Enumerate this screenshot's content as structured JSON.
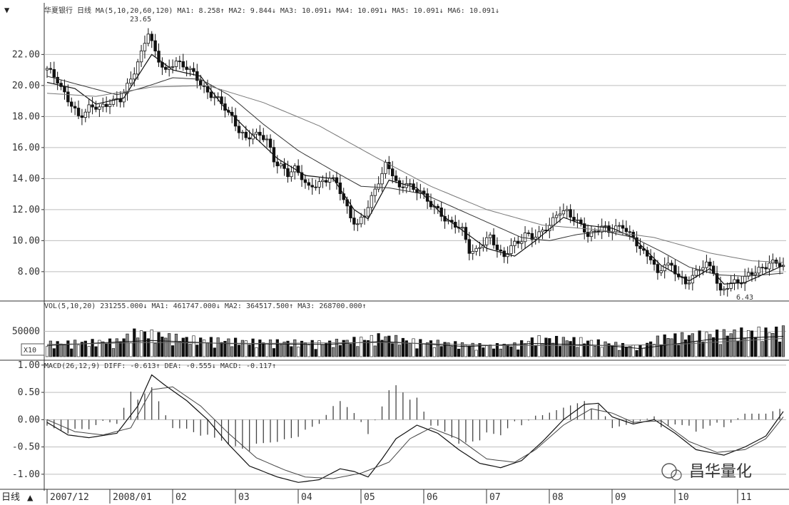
{
  "headers": {
    "price": "华夏银行 日线 MA(5,10,20,60,120)  MA1: 8.258↑  MA2: 9.844↓  MA3: 10.091↓  MA4: 10.091↓  MA5: 10.091↓  MA6: 10.091↓",
    "volume": "VOL(5,10,20)  231255.000↓  MA1: 461747.000↓  MA2: 364517.500↑  MA3: 268700.000↑",
    "macd": "MACD(26,12,9)  DIFF: -0.613↑  DEA: -0.555↓  MACD: -0.117↑"
  },
  "annotations": {
    "high_label": "23.65",
    "low_label": "6.43",
    "volume_unit": "X10",
    "nav_label": "日线"
  },
  "watermark": "昌华量化",
  "colors": {
    "up": "#ffffff",
    "down": "#111111",
    "ma_short": "#111111",
    "ma_long": "#777777",
    "grid": "#bdbdbd"
  },
  "chart_data": [
    {
      "type": "candlestick",
      "title": "华夏银行 日线",
      "y_tick_labels": [
        "22.00",
        "20.00",
        "18.00",
        "16.00",
        "14.00",
        "12.00",
        "10.00",
        "8.00"
      ],
      "ylim": [
        6.2,
        24.5
      ],
      "x_tick_labels": [
        "2007/12",
        "2008/01",
        "02",
        "03",
        "04",
        "05",
        "06",
        "07",
        "08",
        "09",
        "10",
        "11"
      ],
      "high": 23.65,
      "low": 6.43,
      "close_path": [
        [
          0,
          21.0
        ],
        [
          3,
          20.4
        ],
        [
          6,
          19.0
        ],
        [
          9,
          18.0
        ],
        [
          12,
          18.6
        ],
        [
          15,
          18.5
        ],
        [
          18,
          19.0
        ],
        [
          21,
          19.0
        ],
        [
          24,
          20.5
        ],
        [
          27,
          22.0
        ],
        [
          29,
          23.4
        ],
        [
          31,
          22.2
        ],
        [
          34,
          20.8
        ],
        [
          37,
          21.6
        ],
        [
          40,
          21.2
        ],
        [
          43,
          20.4
        ],
        [
          46,
          19.6
        ],
        [
          49,
          19.0
        ],
        [
          51,
          18.6
        ],
        [
          53,
          18.0
        ],
        [
          55,
          17.0
        ],
        [
          57,
          16.5
        ],
        [
          59,
          17.0
        ],
        [
          61,
          16.8
        ],
        [
          63,
          16.4
        ],
        [
          65,
          15.2
        ],
        [
          67,
          14.9
        ],
        [
          69,
          14.2
        ],
        [
          71,
          14.6
        ],
        [
          73,
          14.2
        ],
        [
          75,
          13.4
        ],
        [
          77,
          13.5
        ],
        [
          79,
          13.8
        ],
        [
          81,
          14.2
        ],
        [
          83,
          13.6
        ],
        [
          85,
          12.6
        ],
        [
          87,
          11.6
        ],
        [
          89,
          11.0
        ],
        [
          91,
          11.6
        ],
        [
          93,
          12.8
        ],
        [
          95,
          13.9
        ],
        [
          97,
          14.8
        ],
        [
          99,
          14.3
        ],
        [
          101,
          13.4
        ],
        [
          103,
          13.8
        ],
        [
          105,
          13.1
        ],
        [
          107,
          13.3
        ],
        [
          109,
          12.6
        ],
        [
          111,
          12.1
        ],
        [
          113,
          11.6
        ],
        [
          115,
          11.3
        ],
        [
          117,
          11.0
        ],
        [
          119,
          10.6
        ],
        [
          121,
          9.4
        ],
        [
          123,
          9.4
        ],
        [
          125,
          9.8
        ],
        [
          127,
          10.2
        ],
        [
          129,
          9.6
        ],
        [
          131,
          8.9
        ],
        [
          133,
          9.6
        ],
        [
          135,
          9.9
        ],
        [
          137,
          10.5
        ],
        [
          139,
          10.1
        ],
        [
          141,
          10.4
        ],
        [
          143,
          10.9
        ],
        [
          145,
          11.3
        ],
        [
          147,
          11.8
        ],
        [
          149,
          11.9
        ],
        [
          151,
          11.5
        ],
        [
          153,
          10.9
        ],
        [
          155,
          10.3
        ],
        [
          157,
          10.7
        ],
        [
          159,
          10.9
        ],
        [
          161,
          10.5
        ],
        [
          163,
          10.9
        ],
        [
          165,
          11.0
        ],
        [
          167,
          10.3
        ],
        [
          169,
          9.8
        ],
        [
          171,
          9.3
        ],
        [
          173,
          8.9
        ],
        [
          175,
          7.7
        ],
        [
          177,
          8.6
        ],
        [
          179,
          8.4
        ],
        [
          181,
          7.6
        ],
        [
          183,
          7.2
        ],
        [
          185,
          7.8
        ],
        [
          187,
          8.2
        ],
        [
          189,
          8.4
        ],
        [
          191,
          8.1
        ],
        [
          193,
          6.7
        ],
        [
          195,
          7.0
        ],
        [
          197,
          7.3
        ],
        [
          199,
          7.5
        ],
        [
          201,
          7.8
        ],
        [
          203,
          7.9
        ],
        [
          205,
          8.3
        ],
        [
          207,
          8.6
        ],
        [
          209,
          8.5
        ],
        [
          211,
          8.3
        ]
      ],
      "ma_short_path": [
        [
          0,
          20.2
        ],
        [
          8,
          19.8
        ],
        [
          14,
          18.8
        ],
        [
          22,
          19.2
        ],
        [
          30,
          22.0
        ],
        [
          36,
          21.0
        ],
        [
          44,
          20.6
        ],
        [
          50,
          18.8
        ],
        [
          58,
          17.0
        ],
        [
          66,
          15.3
        ],
        [
          74,
          14.2
        ],
        [
          82,
          14.0
        ],
        [
          88,
          12.0
        ],
        [
          92,
          11.4
        ],
        [
          98,
          13.9
        ],
        [
          106,
          13.4
        ],
        [
          114,
          11.5
        ],
        [
          120,
          10.5
        ],
        [
          126,
          9.5
        ],
        [
          134,
          9.0
        ],
        [
          140,
          10.0
        ],
        [
          148,
          11.5
        ],
        [
          154,
          11.0
        ],
        [
          162,
          10.8
        ],
        [
          168,
          10.2
        ],
        [
          176,
          8.4
        ],
        [
          184,
          7.4
        ],
        [
          190,
          8.2
        ],
        [
          194,
          7.2
        ],
        [
          200,
          7.3
        ],
        [
          211,
          8.4
        ]
      ],
      "ma_mid_path": [
        [
          0,
          20.6
        ],
        [
          10,
          20.0
        ],
        [
          20,
          19.4
        ],
        [
          28,
          19.9
        ],
        [
          36,
          20.5
        ],
        [
          44,
          20.4
        ],
        [
          52,
          19.4
        ],
        [
          62,
          17.5
        ],
        [
          72,
          15.8
        ],
        [
          82,
          14.5
        ],
        [
          90,
          13.5
        ],
        [
          98,
          13.4
        ],
        [
          108,
          13.0
        ],
        [
          118,
          12.0
        ],
        [
          128,
          11.0
        ],
        [
          136,
          10.2
        ],
        [
          144,
          10.0
        ],
        [
          152,
          10.4
        ],
        [
          160,
          10.6
        ],
        [
          168,
          10.2
        ],
        [
          176,
          9.3
        ],
        [
          184,
          8.3
        ],
        [
          192,
          7.8
        ],
        [
          200,
          7.7
        ],
        [
          211,
          7.9
        ]
      ],
      "ma_long_path": [
        [
          0,
          19.5
        ],
        [
          14,
          19.3
        ],
        [
          30,
          19.9
        ],
        [
          46,
          20.0
        ],
        [
          62,
          18.9
        ],
        [
          78,
          17.4
        ],
        [
          94,
          15.4
        ],
        [
          110,
          13.5
        ],
        [
          126,
          12.0
        ],
        [
          142,
          11.0
        ],
        [
          158,
          10.7
        ],
        [
          174,
          10.2
        ],
        [
          190,
          9.2
        ],
        [
          202,
          8.7
        ],
        [
          211,
          8.6
        ]
      ]
    },
    {
      "type": "bar",
      "title": "VOL(5,10,20)",
      "y_tick_labels": [
        "50000"
      ],
      "ylim": [
        0,
        90000
      ],
      "volume_profile": [
        [
          0,
          22000
        ],
        [
          20,
          26000
        ],
        [
          26,
          42000
        ],
        [
          32,
          36000
        ],
        [
          40,
          30000
        ],
        [
          46,
          28000
        ],
        [
          60,
          25000
        ],
        [
          80,
          23000
        ],
        [
          92,
          30000
        ],
        [
          96,
          34000
        ],
        [
          104,
          26000
        ],
        [
          116,
          22000
        ],
        [
          126,
          18000
        ],
        [
          134,
          20000
        ],
        [
          140,
          30000
        ],
        [
          152,
          28000
        ],
        [
          164,
          20000
        ],
        [
          170,
          16000
        ],
        [
          176,
          32000
        ],
        [
          186,
          36000
        ],
        [
          196,
          40000
        ],
        [
          211,
          44000
        ]
      ],
      "ma_short_path": [
        [
          0,
          22000
        ],
        [
          30,
          32000
        ],
        [
          50,
          26000
        ],
        [
          80,
          24000
        ],
        [
          96,
          30000
        ],
        [
          120,
          20000
        ],
        [
          140,
          26000
        ],
        [
          160,
          22000
        ],
        [
          170,
          16000
        ],
        [
          190,
          34000
        ],
        [
          211,
          40000
        ]
      ],
      "ma_long_path": [
        [
          0,
          24000
        ],
        [
          30,
          28000
        ],
        [
          60,
          26000
        ],
        [
          96,
          28000
        ],
        [
          130,
          22000
        ],
        [
          160,
          22000
        ],
        [
          180,
          24000
        ],
        [
          211,
          36000
        ]
      ]
    },
    {
      "type": "line",
      "title": "MACD(26,12,9)",
      "y_tick_labels": [
        "1.00",
        "0.50",
        "0.00",
        "-0.50",
        "-1.00"
      ],
      "ylim": [
        -1.25,
        1.05
      ],
      "diff_path": [
        [
          0,
          -0.05
        ],
        [
          6,
          -0.28
        ],
        [
          12,
          -0.33
        ],
        [
          20,
          -0.25
        ],
        [
          26,
          0.25
        ],
        [
          30,
          0.82
        ],
        [
          34,
          0.62
        ],
        [
          40,
          0.35
        ],
        [
          46,
          0.0
        ],
        [
          52,
          -0.45
        ],
        [
          58,
          -0.85
        ],
        [
          66,
          -1.05
        ],
        [
          72,
          -1.15
        ],
        [
          78,
          -1.1
        ],
        [
          84,
          -0.9
        ],
        [
          88,
          -0.95
        ],
        [
          92,
          -1.05
        ],
        [
          96,
          -0.72
        ],
        [
          100,
          -0.35
        ],
        [
          106,
          -0.1
        ],
        [
          112,
          -0.25
        ],
        [
          118,
          -0.55
        ],
        [
          124,
          -0.8
        ],
        [
          130,
          -0.88
        ],
        [
          136,
          -0.75
        ],
        [
          142,
          -0.4
        ],
        [
          148,
          0.0
        ],
        [
          154,
          0.28
        ],
        [
          158,
          0.3
        ],
        [
          162,
          0.05
        ],
        [
          168,
          -0.08
        ],
        [
          174,
          0.0
        ],
        [
          180,
          -0.25
        ],
        [
          186,
          -0.55
        ],
        [
          190,
          -0.6
        ],
        [
          194,
          -0.65
        ],
        [
          200,
          -0.5
        ],
        [
          206,
          -0.3
        ],
        [
          211,
          0.15
        ]
      ],
      "dea_path": [
        [
          0,
          0.0
        ],
        [
          8,
          -0.22
        ],
        [
          16,
          -0.28
        ],
        [
          24,
          -0.15
        ],
        [
          30,
          0.55
        ],
        [
          36,
          0.6
        ],
        [
          44,
          0.25
        ],
        [
          52,
          -0.25
        ],
        [
          60,
          -0.7
        ],
        [
          68,
          -0.92
        ],
        [
          74,
          -1.05
        ],
        [
          82,
          -1.08
        ],
        [
          90,
          -0.98
        ],
        [
          98,
          -0.78
        ],
        [
          104,
          -0.35
        ],
        [
          110,
          -0.15
        ],
        [
          118,
          -0.35
        ],
        [
          126,
          -0.72
        ],
        [
          134,
          -0.78
        ],
        [
          140,
          -0.55
        ],
        [
          148,
          -0.1
        ],
        [
          156,
          0.2
        ],
        [
          162,
          0.12
        ],
        [
          168,
          -0.05
        ],
        [
          176,
          -0.02
        ],
        [
          184,
          -0.4
        ],
        [
          192,
          -0.6
        ],
        [
          200,
          -0.55
        ],
        [
          206,
          -0.35
        ],
        [
          211,
          0.05
        ]
      ]
    }
  ]
}
